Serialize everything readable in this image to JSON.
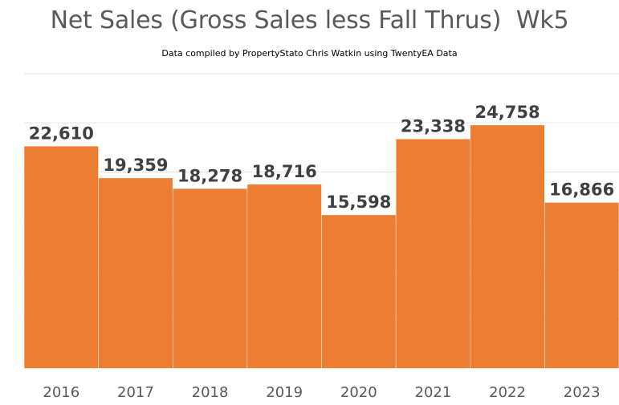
{
  "colors": {
    "bar": "#ED7D31",
    "gridline": "#E3E3E3",
    "axis_line": "#D9D9D9",
    "data_label": "#404040",
    "tick_label": "#595959",
    "title": "#595959"
  },
  "chart_data": {
    "type": "bar",
    "title": "Net Sales (Gross Sales less Fall Thrus)  Wk5",
    "subtitle": "Data compiled by PropertyStato Chris Watkin using TwentyEA Data",
    "xlabel": "",
    "ylabel": "",
    "categories": [
      "2016",
      "2017",
      "2018",
      "2019",
      "2020",
      "2021",
      "2022",
      "2023"
    ],
    "values": [
      22610,
      19359,
      18278,
      18716,
      15598,
      23338,
      24758,
      16866
    ],
    "data_labels": [
      "22,610",
      "19,359",
      "18,278",
      "18,716",
      "15,598",
      "23,338",
      "24,758",
      "16,866"
    ],
    "ylim": [
      0,
      30000
    ],
    "y_gridline_step": 5000,
    "grid": true,
    "legend": "none"
  }
}
